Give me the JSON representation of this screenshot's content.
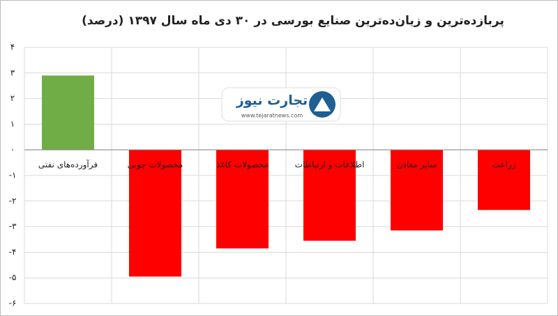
{
  "chart_data": {
    "type": "bar",
    "title": "پربازده‌ترین و زیان‌ده‌ترین صنایع بورسی در ۳۰ دی ماه سال ۱۳۹۷ (درصد)",
    "categories": [
      "فرآورده‌های نفتی",
      "محصولات چوبی",
      "محصولات کاغذ",
      "اطلاعات و ارتباطات",
      "سایر معادن",
      "زراعت"
    ],
    "values": [
      2.9,
      -4.95,
      -3.85,
      -3.55,
      -3.15,
      -2.35
    ],
    "positive_color": "#70ad47",
    "negative_color": "#ff0000",
    "ylim": [
      -6,
      4
    ],
    "yticks": [
      {
        "value": -6,
        "label": "-۶"
      },
      {
        "value": -5,
        "label": "-۵"
      },
      {
        "value": -4,
        "label": "-۴"
      },
      {
        "value": -3,
        "label": "-۳"
      },
      {
        "value": -2,
        "label": "-۲"
      },
      {
        "value": -1,
        "label": "-۱"
      },
      {
        "value": 0,
        "label": "۰"
      },
      {
        "value": 1,
        "label": "۱"
      },
      {
        "value": 2,
        "label": "۲"
      },
      {
        "value": 3,
        "label": "۳"
      },
      {
        "value": 4,
        "label": "۴"
      }
    ],
    "grid": true,
    "watermark": {
      "name": "تجارت نیوز",
      "url": "www.tejaratnews.com"
    }
  }
}
